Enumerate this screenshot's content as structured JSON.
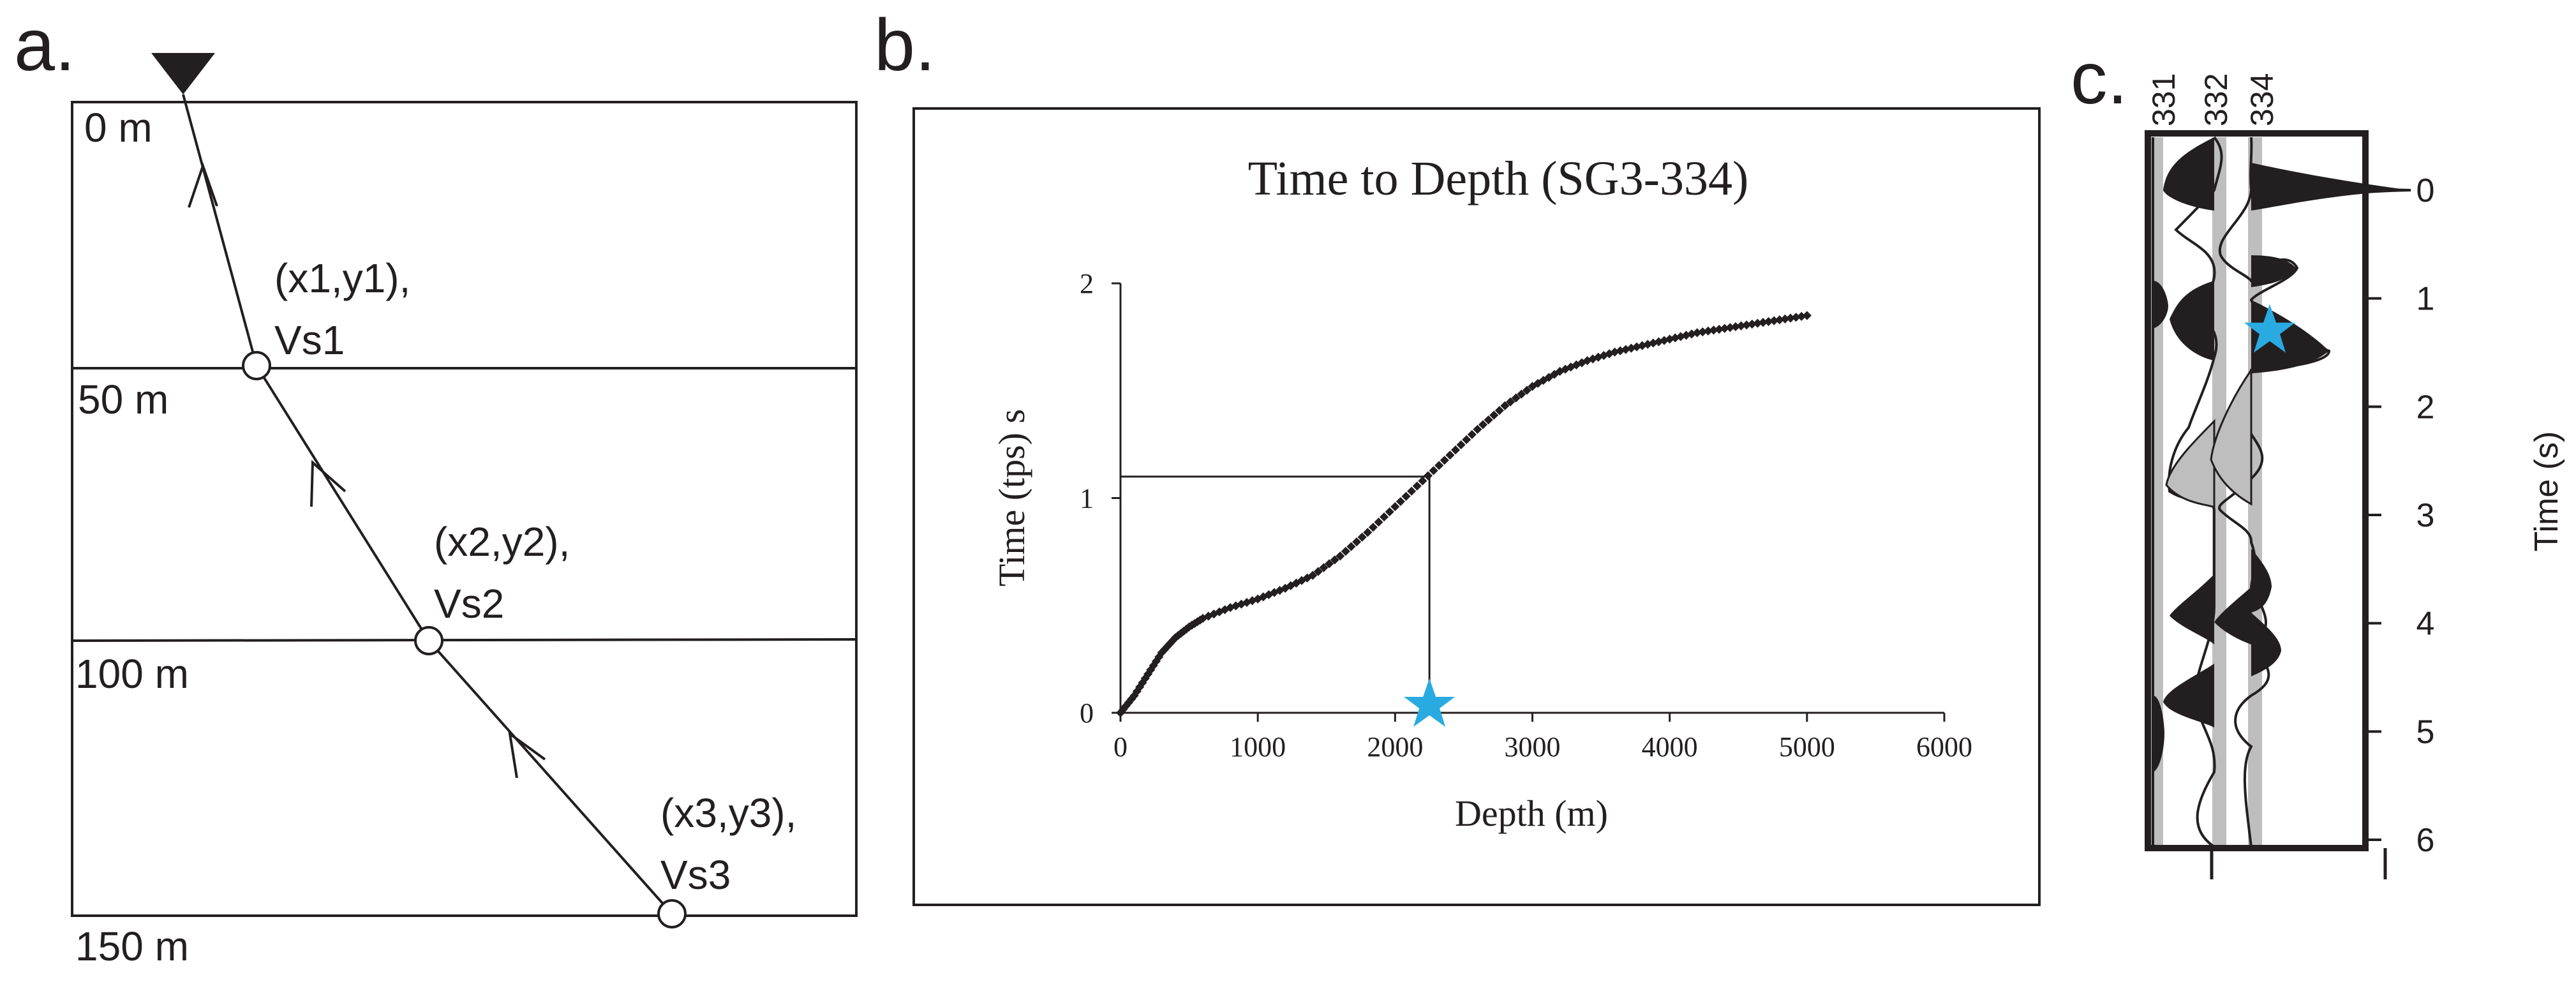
{
  "panels": {
    "a": {
      "letter": "a.",
      "depth_labels": [
        "0 m",
        "50 m",
        "100 m",
        "150 m"
      ],
      "points": [
        {
          "line1": "(x1,y1),",
          "line2": "Vs1"
        },
        {
          "line1": "(x2,y2),",
          "line2": "Vs2"
        },
        {
          "line1": "(x3,y3),",
          "line2": "Vs3"
        }
      ]
    },
    "b": {
      "letter": "b."
    },
    "c": {
      "letter": "c.",
      "trace_labels": [
        "331",
        "332",
        "334"
      ],
      "ylabel": "Time (s)",
      "yticks": [
        "0",
        "1",
        "2",
        "3",
        "4",
        "5",
        "6"
      ],
      "star_time_s": 1.3
    }
  },
  "chart_data": {
    "type": "scatter",
    "title": "Time to Depth (SG3-334)",
    "xlabel": "Depth (m)",
    "ylabel": "Time (tps) s",
    "xlim": [
      0,
      6000
    ],
    "ylim": [
      0,
      2
    ],
    "xticks": [
      "0",
      "1000",
      "2000",
      "3000",
      "4000",
      "5000",
      "6000"
    ],
    "yticks": [
      "0",
      "1",
      "2"
    ],
    "series": [
      {
        "name": "SG3-334",
        "x": [
          0,
          100,
          200,
          300,
          400,
          500,
          600,
          800,
          1000,
          1200,
          1400,
          1600,
          1800,
          2000,
          2200,
          2400,
          2600,
          2800,
          3000,
          3200,
          3400,
          3600,
          3800,
          4000,
          4200,
          4400,
          4600,
          4800,
          5000
        ],
        "y": [
          0.0,
          0.08,
          0.18,
          0.28,
          0.35,
          0.4,
          0.44,
          0.49,
          0.53,
          0.58,
          0.64,
          0.73,
          0.84,
          0.96,
          1.08,
          1.2,
          1.32,
          1.43,
          1.52,
          1.59,
          1.64,
          1.68,
          1.71,
          1.74,
          1.77,
          1.79,
          1.81,
          1.83,
          1.85
        ]
      }
    ],
    "marker_depth_m": 2250,
    "marker_time_s": 1.1
  }
}
